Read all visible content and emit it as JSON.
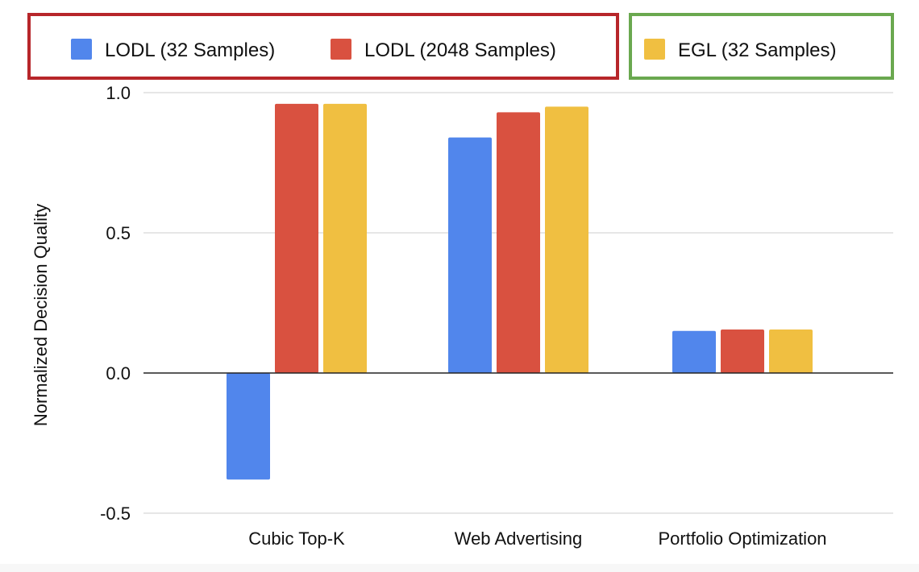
{
  "chart_data": {
    "type": "bar",
    "categories": [
      "Cubic Top-K",
      "Web Advertising",
      "Portfolio Optimization"
    ],
    "series": [
      {
        "name": "LODL (32 Samples)",
        "values": [
          -0.38,
          0.84,
          0.15
        ],
        "color": "#5186EC"
      },
      {
        "name": "LODL (2048 Samples)",
        "values": [
          0.96,
          0.93,
          0.155
        ],
        "color": "#D95140"
      },
      {
        "name": "EGL (32 Samples)",
        "values": [
          0.96,
          0.95,
          0.155
        ],
        "color": "#F0BF41"
      }
    ],
    "title": "",
    "xlabel": "",
    "ylabel": "Normalized Decision Quality",
    "ylim": [
      -0.5,
      1.0
    ],
    "yticks": [
      {
        "value": -0.5,
        "label": "-0.5"
      },
      {
        "value": 0.0,
        "label": "0.0"
      },
      {
        "value": 0.5,
        "label": "0.5"
      },
      {
        "value": 1.0,
        "label": "1.0"
      }
    ],
    "grid": true,
    "legend_position": "top",
    "legend_groups": [
      {
        "series": [
          0,
          1
        ],
        "outline_color": "#B7262A"
      },
      {
        "series": [
          2
        ],
        "outline_color": "#6AA84F"
      }
    ]
  }
}
